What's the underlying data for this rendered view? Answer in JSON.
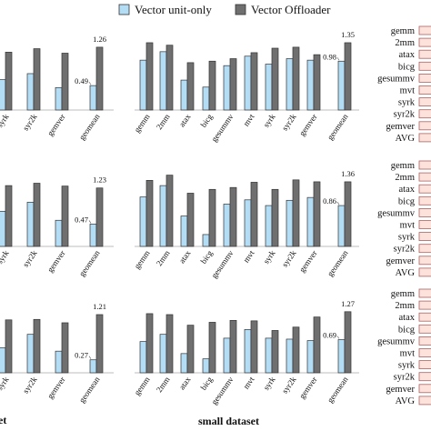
{
  "legend": {
    "series1": "Vector unit-only",
    "series2": "Vector Offloader",
    "color1": "#b3dcf5",
    "color2": "#6f6f6f"
  },
  "footer": {
    "left_partial": "et",
    "small": "small dataset"
  },
  "side_labels": [
    "gemm",
    "2mm",
    "atax",
    "bicg",
    "gesummv",
    "mvt",
    "syrk",
    "syr2k",
    "gemver",
    "AVG"
  ],
  "chart_data": [
    {
      "type": "bar",
      "panel": "row1-left-partial",
      "categories": [
        "syrk",
        "syr2k",
        "gemver",
        "geomean"
      ],
      "series": [
        {
          "name": "Vector unit-only",
          "values": [
            0.61,
            0.73,
            0.45,
            0.49
          ]
        },
        {
          "name": "Vector Offloader",
          "values": [
            1.16,
            1.23,
            1.14,
            1.26
          ]
        }
      ],
      "annotations": [
        "0.49",
        "1.26"
      ]
    },
    {
      "type": "bar",
      "panel": "row1-small",
      "categories": [
        "gemm",
        "2mm",
        "atax",
        "bicg",
        "gesummv",
        "mvt",
        "syrk",
        "syr2k",
        "gemver",
        "geomean"
      ],
      "series": [
        {
          "name": "Vector unit-only",
          "values": [
            1.0,
            1.17,
            0.6,
            0.46,
            0.89,
            1.08,
            0.92,
            1.03,
            1.0,
            0.98
          ]
        },
        {
          "name": "Vector Offloader",
          "values": [
            1.35,
            1.3,
            0.95,
            0.98,
            1.03,
            1.15,
            1.24,
            1.26,
            1.11,
            1.35
          ]
        }
      ],
      "annotations": [
        "0.98",
        "1.35"
      ]
    },
    {
      "type": "bar",
      "panel": "row2-left-partial",
      "categories": [
        "syrk",
        "syr2k",
        "gemver",
        "geomean"
      ],
      "series": [
        {
          "name": "Vector unit-only",
          "values": [
            0.74,
            0.93,
            0.55,
            0.47
          ]
        },
        {
          "name": "Vector Offloader",
          "values": [
            1.28,
            1.33,
            1.27,
            1.23
          ]
        }
      ],
      "annotations": [
        "0.47",
        "1.23"
      ]
    },
    {
      "type": "bar",
      "panel": "row2-small",
      "categories": [
        "gemm",
        "2mm",
        "atax",
        "bicg",
        "gesummv",
        "mvt",
        "syrk",
        "syr2k",
        "gemver",
        "geomean"
      ],
      "series": [
        {
          "name": "Vector unit-only",
          "values": [
            1.04,
            1.28,
            0.64,
            0.25,
            0.89,
            0.98,
            0.86,
            0.97,
            1.03,
            0.86
          ]
        },
        {
          "name": "Vector Offloader",
          "values": [
            1.39,
            1.5,
            1.12,
            1.2,
            1.24,
            1.35,
            1.2,
            1.4,
            1.36,
            1.36
          ]
        }
      ],
      "annotations": [
        "0.86",
        "1.36"
      ]
    },
    {
      "type": "bar",
      "panel": "row3-left-partial",
      "categories": [
        "syrk",
        "syr2k",
        "gemver",
        "geomean"
      ],
      "series": [
        {
          "name": "Vector unit-only",
          "values": [
            0.52,
            0.8,
            0.45,
            0.27
          ]
        },
        {
          "name": "Vector Offloader",
          "values": [
            1.1,
            1.11,
            1.04,
            1.21
          ]
        }
      ],
      "annotations": [
        "0.27",
        "1.21"
      ]
    },
    {
      "type": "bar",
      "panel": "row3-small",
      "categories": [
        "gemm",
        "2mm",
        "atax",
        "bicg",
        "gesummv",
        "mvt",
        "syrk",
        "syr2k",
        "gemver",
        "geomean"
      ],
      "series": [
        {
          "name": "Vector unit-only",
          "values": [
            0.65,
            0.8,
            0.4,
            0.29,
            0.72,
            0.9,
            0.72,
            0.7,
            0.67,
            0.69
          ]
        },
        {
          "name": "Vector Offloader",
          "values": [
            1.23,
            1.21,
            0.99,
            1.05,
            1.09,
            1.08,
            0.88,
            0.95,
            1.16,
            1.27
          ]
        }
      ],
      "annotations": [
        "0.69",
        "1.27"
      ]
    }
  ]
}
